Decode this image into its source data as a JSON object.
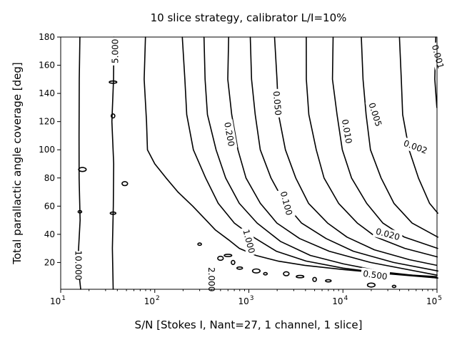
{
  "chart_data": {
    "type": "contour",
    "title": "10 slice strategy, calibrator L/I=10%",
    "xlabel": "S/N [Stokes I, Nant=27, 1 channel, 1 slice]",
    "ylabel": "Total parallactic angle coverage [deg]",
    "x_scale": "log",
    "xlim": [
      10,
      100000
    ],
    "ylim": [
      1,
      180
    ],
    "x_ticks": [
      {
        "value": 10,
        "base": "10",
        "exp": "1"
      },
      {
        "value": 100,
        "base": "10",
        "exp": "2"
      },
      {
        "value": 1000,
        "base": "10",
        "exp": "3"
      },
      {
        "value": 10000,
        "base": "10",
        "exp": "4"
      },
      {
        "value": 100000,
        "base": "10",
        "exp": "5"
      }
    ],
    "y_ticks": [
      20,
      40,
      60,
      80,
      100,
      120,
      140,
      160,
      180
    ],
    "y_tick_labels": [
      "20",
      "40",
      "60",
      "80",
      "100",
      "120",
      "140",
      "160",
      "180"
    ],
    "grid": false,
    "contours": [
      {
        "level": "10.000",
        "points": [
          [
            16,
            180
          ],
          [
            15.5,
            150
          ],
          [
            16,
            110
          ],
          [
            15.5,
            80
          ],
          [
            16,
            50
          ],
          [
            15.5,
            20
          ],
          [
            16,
            1
          ]
        ],
        "label_at": [
          15.3,
          18
        ],
        "label_angle": 90
      },
      {
        "level": "5.000",
        "points": [
          [
            36,
            180
          ],
          [
            37,
            150
          ],
          [
            35,
            120
          ],
          [
            36,
            90
          ],
          [
            37,
            60
          ],
          [
            35,
            30
          ],
          [
            36,
            1
          ]
        ],
        "label_at": [
          38,
          170
        ],
        "label_angle": -90
      },
      {
        "level": "2.000",
        "points": [
          [
            80,
            180
          ],
          [
            78,
            150
          ],
          [
            80,
            120
          ],
          [
            85,
            100
          ],
          [
            100,
            90
          ],
          [
            130,
            80
          ],
          [
            180,
            70
          ],
          [
            250,
            60
          ],
          [
            350,
            50
          ],
          [
            450,
            43
          ],
          [
            600,
            36
          ],
          [
            800,
            30
          ],
          [
            1200,
            25
          ],
          [
            2000,
            21
          ],
          [
            4000,
            18
          ],
          [
            10000,
            15
          ],
          [
            30000,
            12
          ],
          [
            100000,
            10
          ]
        ],
        "label_at": [
          400,
          8
        ],
        "label_angle": 90
      },
      {
        "level": "1.000",
        "points": [
          [
            200,
            180
          ],
          [
            205,
            150
          ],
          [
            220,
            125
          ],
          [
            260,
            100
          ],
          [
            340,
            80
          ],
          [
            480,
            62
          ],
          [
            700,
            48
          ],
          [
            1100,
            38
          ],
          [
            2000,
            28
          ],
          [
            4000,
            21
          ],
          [
            10000,
            16
          ],
          [
            30000,
            12
          ],
          [
            100000,
            9
          ]
        ],
        "label_at": [
          1000,
          35
        ],
        "label_angle": 75
      },
      {
        "level": "0.500",
        "points": [
          [
            330,
            180
          ],
          [
            340,
            150
          ],
          [
            370,
            125
          ],
          [
            440,
            100
          ],
          [
            570,
            80
          ],
          [
            800,
            62
          ],
          [
            1200,
            48
          ],
          [
            2200,
            35
          ],
          [
            4500,
            25
          ],
          [
            10000,
            19
          ],
          [
            30000,
            13
          ],
          [
            100000,
            9
          ]
        ],
        "label_at": [
          22000,
          11
        ],
        "label_angle": 8
      },
      {
        "level": "0.200",
        "points": [
          [
            600,
            180
          ],
          [
            610,
            150
          ],
          [
            650,
            125
          ],
          [
            760,
            100
          ],
          [
            950,
            80
          ],
          [
            1300,
            62
          ],
          [
            2000,
            48
          ],
          [
            3500,
            37
          ],
          [
            7000,
            28
          ],
          [
            20000,
            20
          ],
          [
            100000,
            11
          ]
        ],
        "label_at": [
          620,
          111
        ],
        "label_angle": 80
      },
      {
        "level": "0.100",
        "points": [
          [
            1050,
            180
          ],
          [
            1070,
            150
          ],
          [
            1150,
            125
          ],
          [
            1350,
            100
          ],
          [
            1700,
            80
          ],
          [
            2400,
            62
          ],
          [
            3700,
            48
          ],
          [
            6500,
            37
          ],
          [
            13000,
            28
          ],
          [
            35000,
            20
          ],
          [
            100000,
            14
          ]
        ],
        "label_at": [
          2500,
          62
        ],
        "label_angle": 75
      },
      {
        "level": "0.050",
        "points": [
          [
            1900,
            180
          ],
          [
            1950,
            150
          ],
          [
            2100,
            125
          ],
          [
            2450,
            100
          ],
          [
            3100,
            80
          ],
          [
            4400,
            62
          ],
          [
            6800,
            48
          ],
          [
            11000,
            38
          ],
          [
            22000,
            29
          ],
          [
            50000,
            22
          ],
          [
            100000,
            18
          ]
        ],
        "label_at": [
          2000,
          133
        ],
        "label_angle": 85
      },
      {
        "level": "0.020",
        "points": [
          [
            4000,
            180
          ],
          [
            4100,
            150
          ],
          [
            4400,
            125
          ],
          [
            5100,
            100
          ],
          [
            6400,
            80
          ],
          [
            9000,
            62
          ],
          [
            14000,
            48
          ],
          [
            23000,
            38
          ],
          [
            45000,
            30
          ],
          [
            100000,
            24
          ]
        ],
        "label_at": [
          30000,
          40
        ],
        "label_angle": 15
      },
      {
        "level": "0.010",
        "points": [
          [
            7800,
            180
          ],
          [
            7900,
            150
          ],
          [
            8500,
            125
          ],
          [
            9900,
            100
          ],
          [
            12500,
            80
          ],
          [
            17500,
            62
          ],
          [
            27000,
            48
          ],
          [
            45000,
            38
          ],
          [
            100000,
            30
          ]
        ],
        "label_at": [
          11000,
          113
        ],
        "label_angle": 80
      },
      {
        "level": "0.005",
        "points": [
          [
            16000,
            180
          ],
          [
            16200,
            150
          ],
          [
            17500,
            125
          ],
          [
            20000,
            100
          ],
          [
            25000,
            80
          ],
          [
            35000,
            62
          ],
          [
            55000,
            48
          ],
          [
            100000,
            38
          ]
        ],
        "label_at": [
          22000,
          125
        ],
        "label_angle": 72
      },
      {
        "level": "0.002",
        "points": [
          [
            40000,
            180
          ],
          [
            41000,
            150
          ],
          [
            44000,
            125
          ],
          [
            50000,
            100
          ],
          [
            63000,
            80
          ],
          [
            85000,
            62
          ],
          [
            100000,
            55
          ]
        ],
        "label_at": [
          59000,
          102
        ],
        "label_angle": 20
      },
      {
        "level": "0.001",
        "points": [
          [
            95000,
            180
          ],
          [
            96000,
            150
          ],
          [
            100000,
            130
          ]
        ],
        "label_at": [
          102000,
          166
        ],
        "label_angle": 75
      }
    ],
    "islands": [
      [
        300,
        33
      ],
      [
        500,
        23
      ],
      [
        600,
        25
      ],
      [
        680,
        20
      ],
      [
        800,
        16
      ],
      [
        1200,
        14
      ],
      [
        1500,
        12
      ],
      [
        2500,
        12
      ],
      [
        3500,
        10
      ],
      [
        5000,
        8
      ],
      [
        7000,
        7
      ],
      [
        20000,
        4
      ],
      [
        35000,
        3
      ],
      [
        48,
        76
      ],
      [
        36,
        148
      ],
      [
        36,
        124
      ],
      [
        36,
        55
      ],
      [
        17,
        86
      ],
      [
        16,
        56
      ]
    ]
  }
}
